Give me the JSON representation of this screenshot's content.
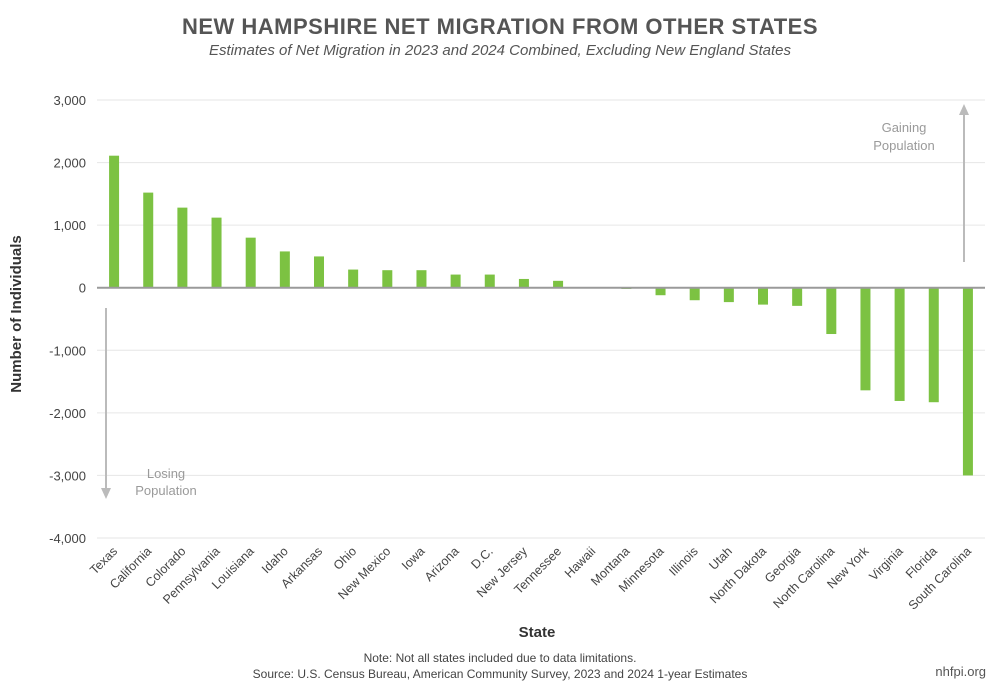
{
  "chart_data": {
    "type": "bar",
    "title": "NEW HAMPSHIRE NET MIGRATION FROM OTHER STATES",
    "subtitle": "Estimates of Net Migration in 2023 and 2024 Combined, Excluding New England States",
    "xlabel": "State",
    "ylabel": "Number of Individuals",
    "ylim": [
      -4000,
      3000
    ],
    "yticks": [
      3000,
      2000,
      1000,
      0,
      -1000,
      -2000,
      -3000,
      -4000
    ],
    "ytick_labels": [
      "3,000",
      "2,000",
      "1,000",
      "0",
      "-1,000",
      "-2,000",
      "-3,000",
      "-4,000"
    ],
    "categories": [
      "Texas",
      "California",
      "Colorado",
      "Pennsylvania",
      "Louisiana",
      "Idaho",
      "Arkansas",
      "Ohio",
      "New Mexico",
      "Iowa",
      "Arizona",
      "D.C.",
      "New Jersey",
      "Tennessee",
      "Hawaii",
      "Montana",
      "Minnesota",
      "Illinois",
      "Utah",
      "North Dakota",
      "Georgia",
      "North Carolina",
      "New York",
      "Virginia",
      "Florida",
      "South Carolina"
    ],
    "values": [
      2110,
      1520,
      1280,
      1120,
      800,
      580,
      500,
      290,
      280,
      280,
      210,
      210,
      140,
      110,
      0,
      -20,
      -120,
      -200,
      -230,
      -270,
      -290,
      -740,
      -1640,
      -1810,
      -1830,
      -3000
    ],
    "bar_color": "#7cc242",
    "grid": true,
    "annotations": {
      "gaining": [
        "Gaining",
        "Population"
      ],
      "losing": [
        "Losing",
        "Population"
      ]
    }
  },
  "footer": {
    "note": "Note: Not all states included due to data limitations.",
    "source": "Source: U.S. Census Bureau, American Community Survey, 2023 and 2024 1-year Estimates",
    "brand": "nhfpi.org"
  }
}
